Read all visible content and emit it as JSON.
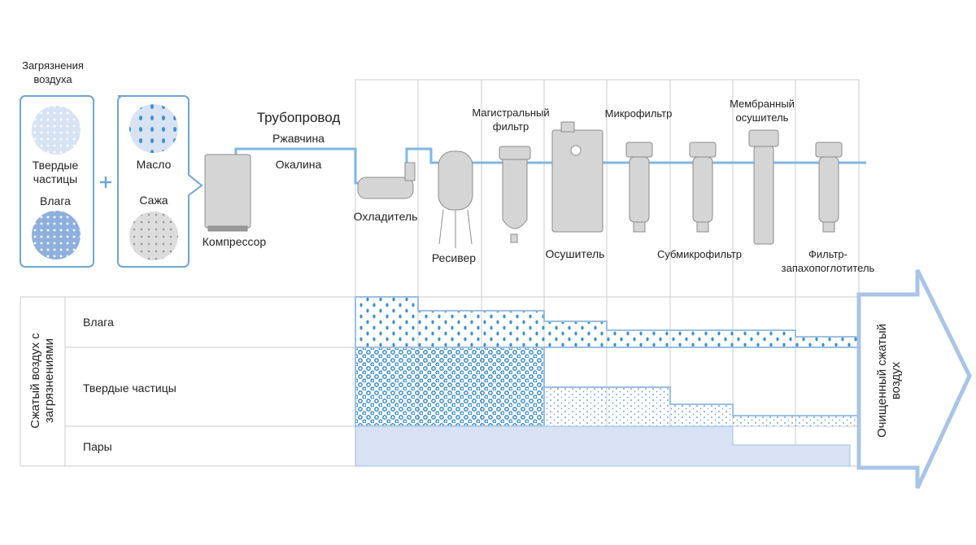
{
  "contaminants": {
    "title": "Загрязнения воздуха",
    "box1": {
      "top": "Твердые частицы",
      "bottom": "Влага"
    },
    "box2": {
      "top": "Масло",
      "bottom": "Сажа"
    }
  },
  "pipeline": {
    "title": "Трубопровод",
    "items": [
      "Ржавчина",
      "Окалина"
    ]
  },
  "equipment": [
    "Компрессор",
    "Охладитель",
    "Ресивер",
    "Магистральный фильтр",
    "Осушитель",
    "Микрофильтр",
    "Субмикрофильтр",
    "Мембранный осушитель",
    "Фильтр-запахопоглотитель"
  ],
  "table": {
    "header": "Сжатый воздух с загрязнениями",
    "rows": [
      "Влага",
      "Твердые частицы",
      "Пары"
    ]
  },
  "result": "Очищенный сжатый воздух"
}
